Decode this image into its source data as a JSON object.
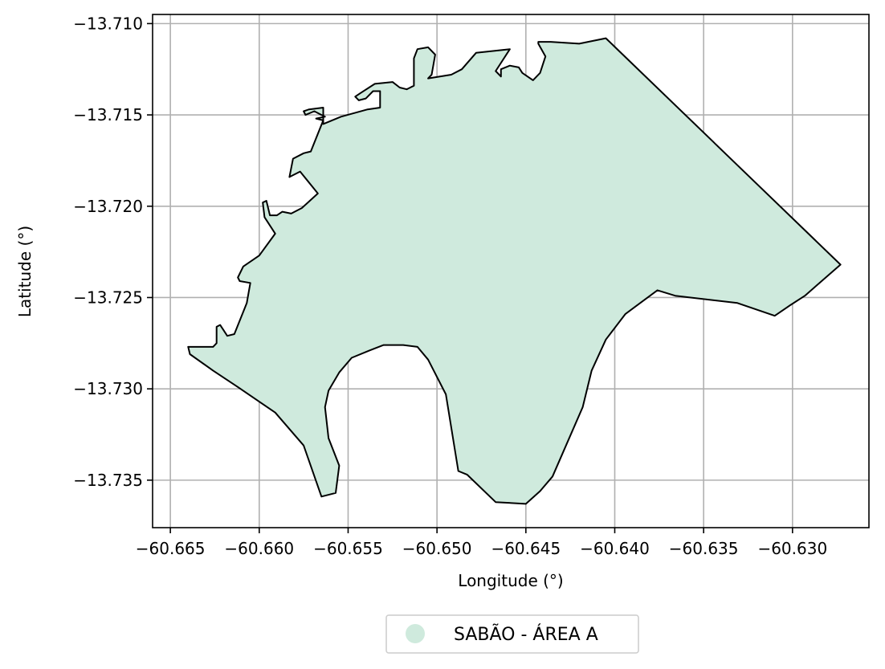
{
  "chart_data": {
    "type": "map",
    "xlabel": "Longitude (°)",
    "ylabel": "Latitude (°)",
    "xlim": [
      -60.666,
      -60.6257
    ],
    "ylim": [
      -13.7376,
      -13.7095
    ],
    "xticks": [
      -60.665,
      -60.66,
      -60.655,
      -60.65,
      -60.645,
      -60.64,
      -60.635,
      -60.63
    ],
    "xtick_labels": [
      "−60.665",
      "−60.660",
      "−60.655",
      "−60.650",
      "−60.645",
      "−60.640",
      "−60.635",
      "−60.630"
    ],
    "yticks": [
      -13.71,
      -13.715,
      -13.72,
      -13.725,
      -13.73,
      -13.735
    ],
    "ytick_labels": [
      "−13.710",
      "−13.715",
      "−13.720",
      "−13.725",
      "−13.730",
      "−13.735"
    ],
    "grid": true,
    "legend_position": "bottom-center",
    "legend": [
      {
        "label": "SABÃO - ÁREA A",
        "color": "#cfeadd"
      }
    ],
    "fill_color": "#cfeadd",
    "edge_color": "#000000",
    "polygon": [
      [
        -60.6405,
        -13.7108
      ],
      [
        -60.6273,
        -13.7232
      ],
      [
        -60.6293,
        -13.7249
      ],
      [
        -60.6301,
        -13.7254
      ],
      [
        -60.631,
        -13.726
      ],
      [
        -60.6331,
        -13.7253
      ],
      [
        -60.6366,
        -13.7249
      ],
      [
        -60.6376,
        -13.7246
      ],
      [
        -60.6394,
        -13.7259
      ],
      [
        -60.6405,
        -13.7273
      ],
      [
        -60.6413,
        -13.729
      ],
      [
        -60.6418,
        -13.731
      ],
      [
        -60.6435,
        -13.7348
      ],
      [
        -60.6442,
        -13.7356
      ],
      [
        -60.645,
        -13.7363
      ],
      [
        -60.6467,
        -13.7362
      ],
      [
        -60.6483,
        -13.7347
      ],
      [
        -60.6488,
        -13.7345
      ],
      [
        -60.6495,
        -13.7303
      ],
      [
        -60.6505,
        -13.7284
      ],
      [
        -60.6511,
        -13.7277
      ],
      [
        -60.6519,
        -13.7276
      ],
      [
        -60.653,
        -13.7276
      ],
      [
        -60.6538,
        -13.7279
      ],
      [
        -60.6548,
        -13.7283
      ],
      [
        -60.6555,
        -13.7291
      ],
      [
        -60.6561,
        -13.7301
      ],
      [
        -60.6563,
        -13.731
      ],
      [
        -60.6561,
        -13.7327
      ],
      [
        -60.6555,
        -13.7342
      ],
      [
        -60.6557,
        -13.7357
      ],
      [
        -60.6565,
        -13.7359
      ],
      [
        -60.6575,
        -13.7331
      ],
      [
        -60.6591,
        -13.7313
      ],
      [
        -60.6612,
        -13.7299
      ],
      [
        -60.6626,
        -13.729
      ],
      [
        -60.6639,
        -13.7281
      ],
      [
        -60.664,
        -13.7277
      ],
      [
        -60.6626,
        -13.7277
      ],
      [
        -60.6624,
        -13.7275
      ],
      [
        -60.6624,
        -13.7266
      ],
      [
        -60.6622,
        -13.7265
      ],
      [
        -60.6618,
        -13.7271
      ],
      [
        -60.6614,
        -13.727
      ],
      [
        -60.6607,
        -13.7253
      ],
      [
        -60.6605,
        -13.7242
      ],
      [
        -60.6611,
        -13.7241
      ],
      [
        -60.6612,
        -13.7239
      ],
      [
        -60.6609,
        -13.7233
      ],
      [
        -60.66,
        -13.7227
      ],
      [
        -60.6591,
        -13.7215
      ],
      [
        -60.6597,
        -13.7206
      ],
      [
        -60.6598,
        -13.7198
      ],
      [
        -60.6596,
        -13.7197
      ],
      [
        -60.6594,
        -13.7205
      ],
      [
        -60.659,
        -13.7205
      ],
      [
        -60.6587,
        -13.7203
      ],
      [
        -60.6582,
        -13.7204
      ],
      [
        -60.6576,
        -13.7201
      ],
      [
        -60.6567,
        -13.7193
      ],
      [
        -60.6577,
        -13.7181
      ],
      [
        -60.6583,
        -13.7184
      ],
      [
        -60.6581,
        -13.7174
      ],
      [
        -60.6575,
        -13.7171
      ],
      [
        -60.6571,
        -13.717
      ],
      [
        -60.6564,
        -13.7153
      ],
      [
        -60.6568,
        -13.7152
      ],
      [
        -60.6563,
        -13.7151
      ],
      [
        -60.6565,
        -13.715
      ],
      [
        -60.6569,
        -13.7148
      ],
      [
        -60.6574,
        -13.715
      ],
      [
        -60.6575,
        -13.7148
      ],
      [
        -60.6572,
        -13.7147
      ],
      [
        -60.6564,
        -13.7146
      ],
      [
        -60.6564,
        -13.7155
      ],
      [
        -60.6554,
        -13.7151
      ],
      [
        -60.6539,
        -13.7147
      ],
      [
        -60.6532,
        -13.7146
      ],
      [
        -60.6532,
        -13.7137
      ],
      [
        -60.6536,
        -13.7137
      ],
      [
        -60.654,
        -13.7141
      ],
      [
        -60.6544,
        -13.7142
      ],
      [
        -60.6546,
        -13.714
      ],
      [
        -60.6543,
        -13.7138
      ],
      [
        -60.6535,
        -13.7133
      ],
      [
        -60.6525,
        -13.7132
      ],
      [
        -60.6521,
        -13.7135
      ],
      [
        -60.6517,
        -13.7136
      ],
      [
        -60.6513,
        -13.7134
      ],
      [
        -60.6513,
        -13.7119
      ],
      [
        -60.6511,
        -13.7114
      ],
      [
        -60.6505,
        -13.7113
      ],
      [
        -60.6501,
        -13.7117
      ],
      [
        -60.6503,
        -13.7128
      ],
      [
        -60.6505,
        -13.713
      ],
      [
        -60.6492,
        -13.7128
      ],
      [
        -60.6486,
        -13.7125
      ],
      [
        -60.6478,
        -13.7116
      ],
      [
        -60.6459,
        -13.7114
      ],
      [
        -60.6467,
        -13.7126
      ],
      [
        -60.6464,
        -13.7129
      ],
      [
        -60.6464,
        -13.7125
      ],
      [
        -60.6459,
        -13.7123
      ],
      [
        -60.6454,
        -13.7124
      ],
      [
        -60.6452,
        -13.7127
      ],
      [
        -60.6446,
        -13.7131
      ],
      [
        -60.6442,
        -13.7127
      ],
      [
        -60.6439,
        -13.7118
      ],
      [
        -60.6443,
        -13.7111
      ],
      [
        -60.6443,
        -13.711
      ],
      [
        -60.6436,
        -13.711
      ],
      [
        -60.642,
        -13.7111
      ]
    ]
  }
}
